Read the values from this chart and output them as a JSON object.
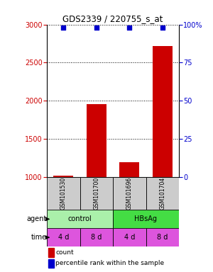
{
  "title": "GDS2339 / 220755_s_at",
  "samples": [
    "GSM101530",
    "GSM101700",
    "GSM101696",
    "GSM101704"
  ],
  "count_values": [
    1020,
    1960,
    1200,
    2720
  ],
  "percentile_values": [
    98,
    98,
    98,
    98
  ],
  "ylim_count": [
    1000,
    3000
  ],
  "ylim_pct": [
    0,
    100
  ],
  "yticks_count": [
    1000,
    1500,
    2000,
    2500,
    3000
  ],
  "yticks_pct": [
    0,
    25,
    50,
    75,
    100
  ],
  "bar_color": "#cc0000",
  "dot_color": "#0000cc",
  "agent_labels": [
    [
      "control",
      2
    ],
    [
      "HBsAg",
      2
    ]
  ],
  "agent_colors": [
    "#aaf0aa",
    "#44dd44"
  ],
  "time_labels": [
    "4 d",
    "8 d",
    "4 d",
    "8 d"
  ],
  "time_color": "#dd55dd",
  "sample_box_color": "#cccccc",
  "legend_count_color": "#cc0000",
  "legend_pct_color": "#0000cc",
  "label_agent": "agent",
  "label_time": "time"
}
